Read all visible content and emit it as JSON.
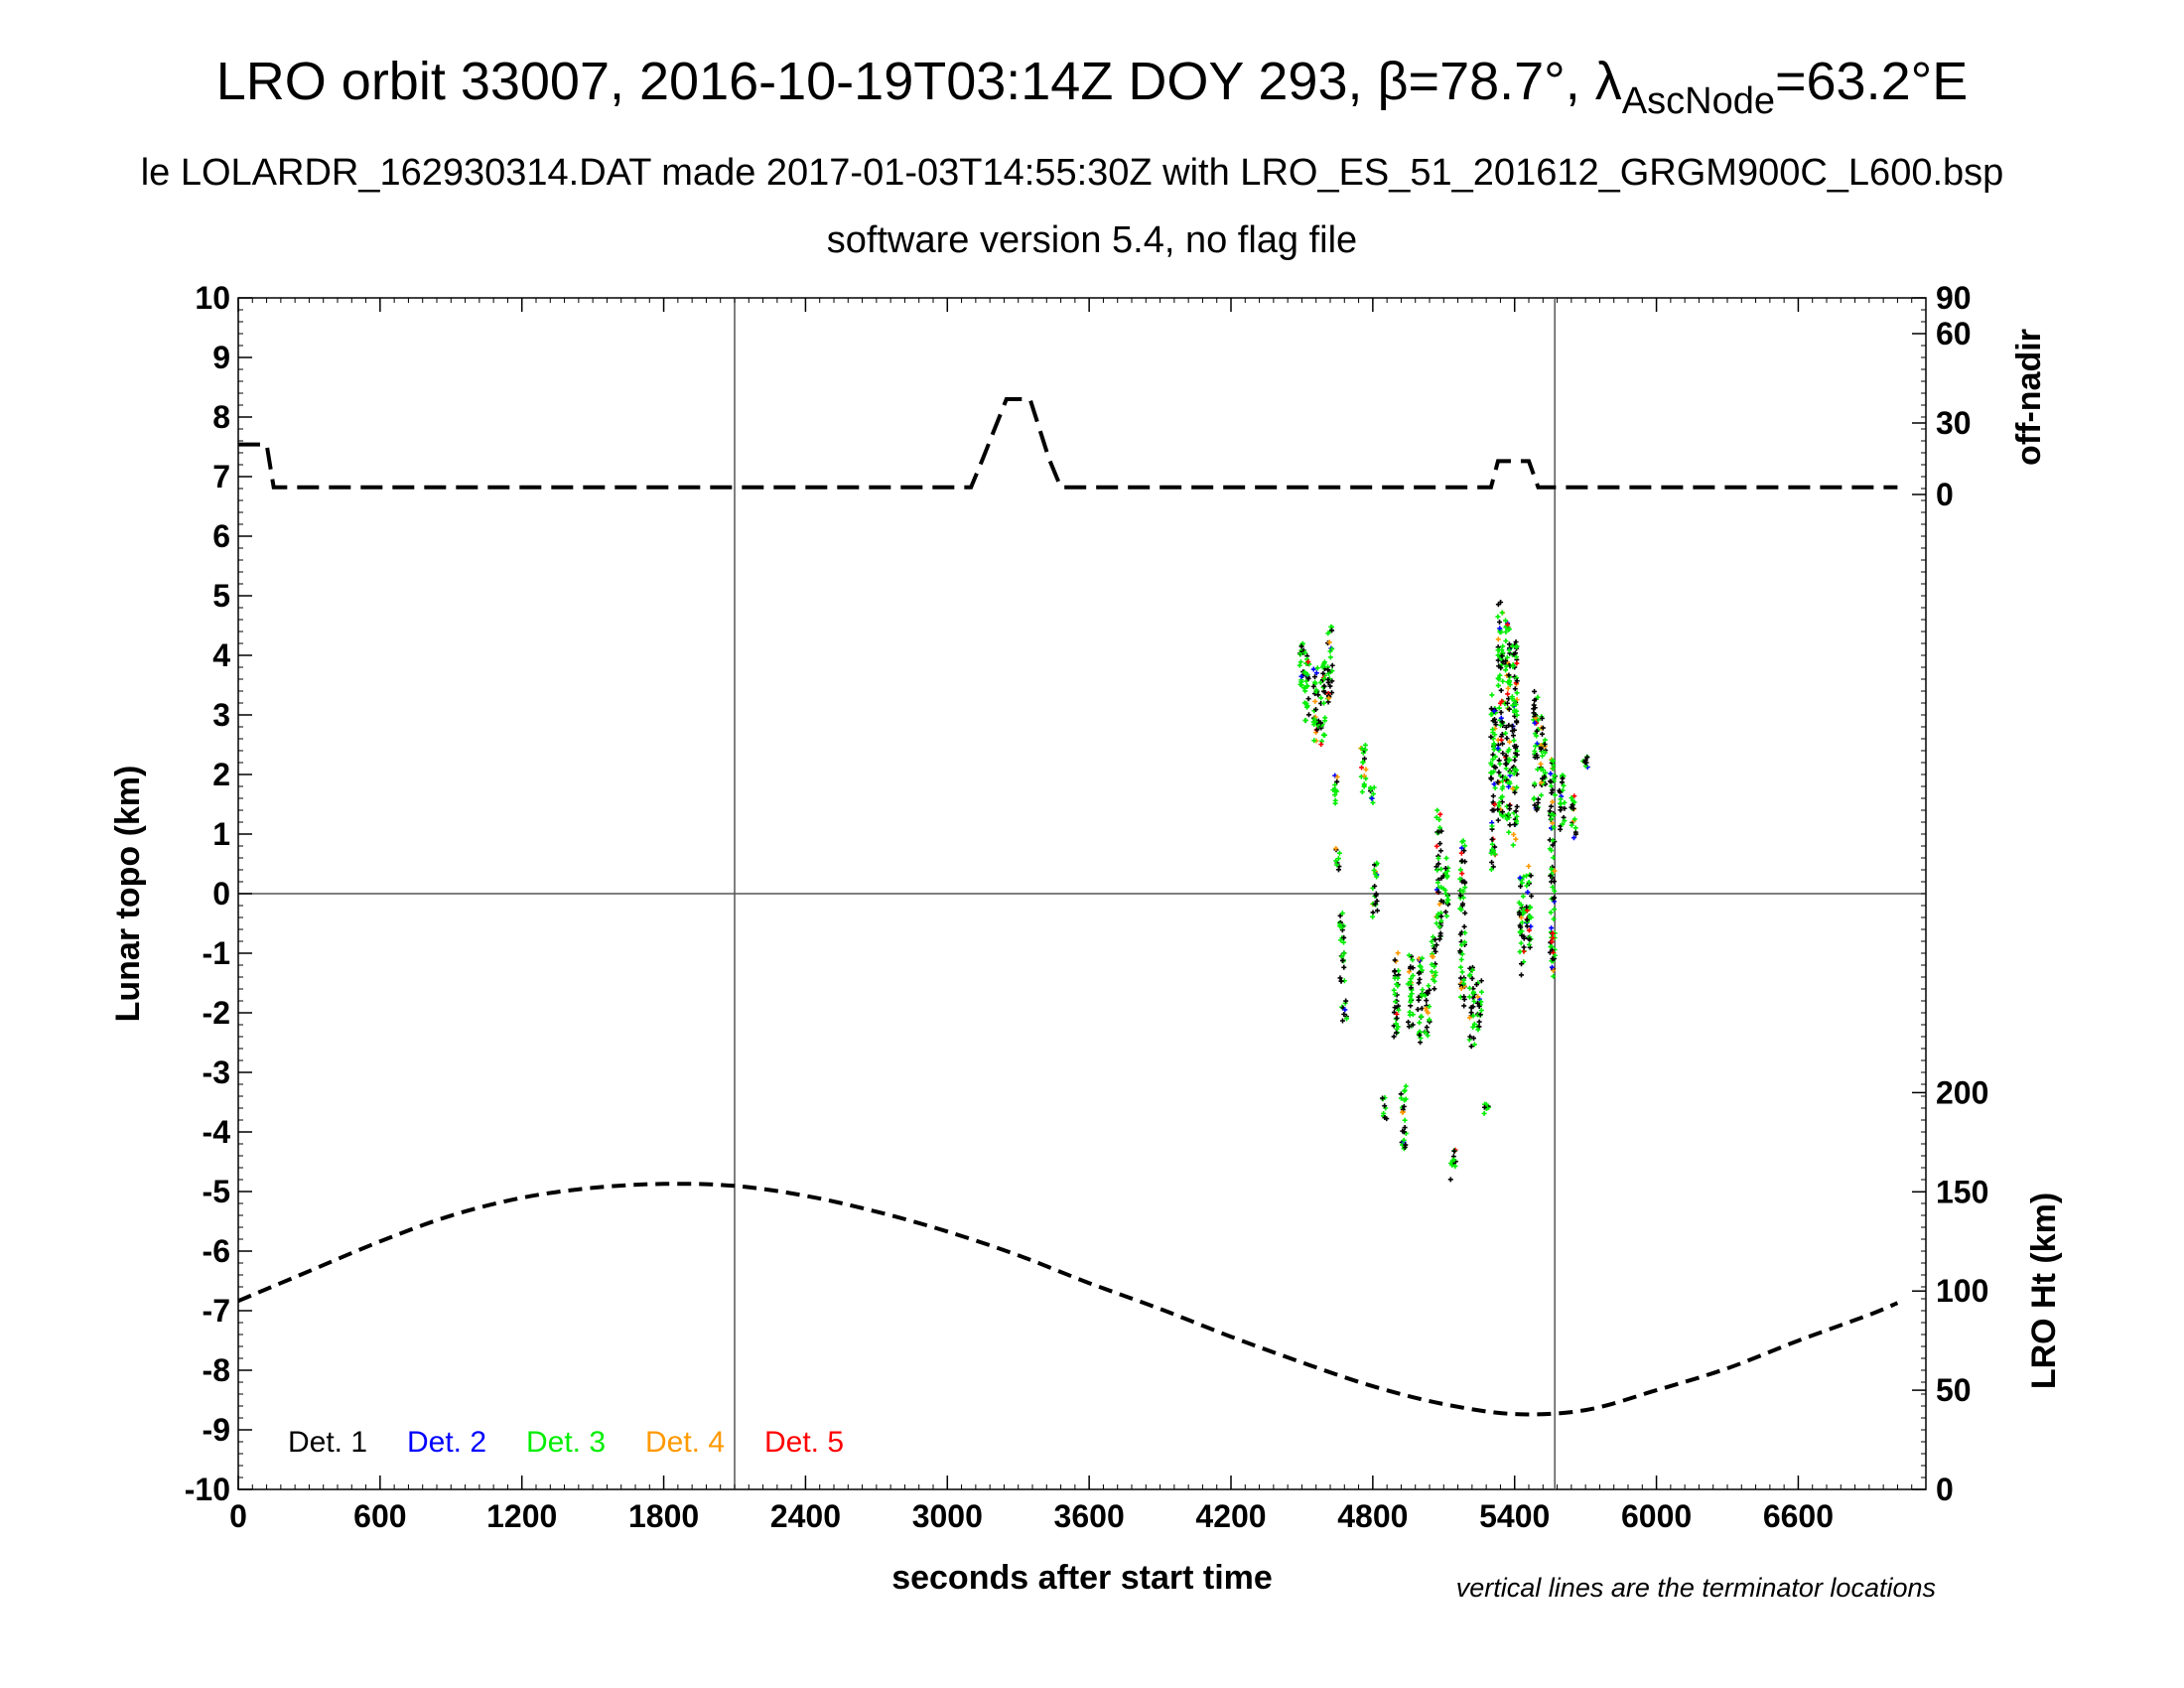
{
  "chart_data": {
    "type": "scatter",
    "title": "LRO orbit 33007, 2016-10-19T03:14Z DOY 293, β=78.7°, λ",
    "title_sub": "AscNode",
    "title_tail": "=63.2°E",
    "subtitle1": "le LOLARDR_162930314.DAT made 2017-01-03T14:55:30Z with LRO_ES_51_201612_GRGM900C_L600.bsp",
    "subtitle2": "software version 5.4, no flag file",
    "xlabel": "seconds after start time",
    "ylabel": "Lunar topo (km)",
    "y2label_top": "off-nadir",
    "y2label_bottom": "LRO Ht (km)",
    "note": "vertical lines are the terminator locations",
    "xlim": [
      0,
      7140
    ],
    "ylim": [
      -10,
      10
    ],
    "x_ticks": [
      "0",
      "600",
      "1200",
      "1800",
      "2400",
      "3000",
      "3600",
      "4200",
      "4800",
      "5400",
      "6000",
      "6600"
    ],
    "x_tick_values": [
      0,
      600,
      1200,
      1800,
      2400,
      3000,
      3600,
      4200,
      4800,
      5400,
      6000,
      6600
    ],
    "y_ticks": [
      "-10",
      "-9",
      "-8",
      "-7",
      "-6",
      "-5",
      "-4",
      "-3",
      "-2",
      "-1",
      "0",
      "1",
      "2",
      "3",
      "4",
      "5",
      "6",
      "7",
      "8",
      "9",
      "10"
    ],
    "y_tick_values": [
      -10,
      -9,
      -8,
      -7,
      -6,
      -5,
      -4,
      -3,
      -2,
      -1,
      0,
      1,
      2,
      3,
      4,
      5,
      6,
      7,
      8,
      9,
      10
    ],
    "offnadir_axis": {
      "tick_labels": [
        "0",
        "30",
        "60",
        "90"
      ],
      "tick_values": [
        0,
        30,
        60,
        90
      ],
      "topo_equivalent": [
        6.7,
        7.9,
        9.4,
        10
      ]
    },
    "height_axis": {
      "tick_labels": [
        "0",
        "50",
        "100",
        "150",
        "200"
      ],
      "tick_values": [
        0,
        50,
        100,
        150,
        200
      ],
      "topo_per_km": 0.0333,
      "topo_at_zero": -10
    },
    "terminators": [
      2100,
      5570
    ],
    "zero_line": 0,
    "legend": [
      {
        "name": "Det. 1",
        "color": "#000000"
      },
      {
        "name": "Det. 2",
        "color": "#0000ff"
      },
      {
        "name": "Det. 3",
        "color": "#00ee00"
      },
      {
        "name": "Det. 4",
        "color": "#ff9900"
      },
      {
        "name": "Det. 5",
        "color": "#ff0000"
      }
    ],
    "offnadir_series": {
      "x": [
        0,
        120,
        150,
        200,
        3100,
        3150,
        3250,
        3350,
        3430,
        3480,
        5300,
        5330,
        5460,
        5500,
        7020
      ],
      "off_nadir_deg": [
        21,
        21,
        3,
        3,
        3,
        15,
        38,
        38,
        15,
        3,
        3,
        14,
        14,
        3,
        3
      ]
    },
    "height_series": {
      "x": [
        0,
        300,
        600,
        900,
        1200,
        1500,
        1800,
        2100,
        2400,
        2700,
        3000,
        3300,
        3600,
        3900,
        4200,
        4500,
        4800,
        5100,
        5400,
        5700,
        6000,
        6300,
        6600,
        6900,
        7020
      ],
      "height_km": [
        95,
        110,
        125,
        138,
        147,
        152,
        154,
        153,
        148,
        140,
        130,
        118,
        104,
        91,
        77,
        64,
        52,
        43,
        38,
        40,
        50,
        61,
        75,
        88,
        94
      ]
    },
    "topo_clusters": [
      {
        "x": 4500,
        "y_min": 3.3,
        "y_max": 4.2
      },
      {
        "x": 4520,
        "y_min": 2.9,
        "y_max": 4.1
      },
      {
        "x": 4560,
        "y_min": 2.4,
        "y_max": 3.8
      },
      {
        "x": 4590,
        "y_min": 2.5,
        "y_max": 3.9
      },
      {
        "x": 4620,
        "y_min": 3.2,
        "y_max": 4.5
      },
      {
        "x": 4640,
        "y_min": 1.5,
        "y_max": 2.0
      },
      {
        "x": 4650,
        "y_min": 0.4,
        "y_max": 0.8
      },
      {
        "x": 4670,
        "y_min": -1.5,
        "y_max": -0.3
      },
      {
        "x": 4680,
        "y_min": -2.2,
        "y_max": -1.8
      },
      {
        "x": 4760,
        "y_min": 1.7,
        "y_max": 2.5
      },
      {
        "x": 4800,
        "y_min": 1.5,
        "y_max": 1.8
      },
      {
        "x": 4810,
        "y_min": -0.4,
        "y_max": 0.6
      },
      {
        "x": 4850,
        "y_min": -3.8,
        "y_max": -3.4
      },
      {
        "x": 4900,
        "y_min": -2.4,
        "y_max": -0.9
      },
      {
        "x": 4930,
        "y_min": -4.3,
        "y_max": -3.2
      },
      {
        "x": 4960,
        "y_min": -2.3,
        "y_max": -1.0
      },
      {
        "x": 5000,
        "y_min": -2.5,
        "y_max": -1.0
      },
      {
        "x": 5030,
        "y_min": -2.4,
        "y_max": -1.5
      },
      {
        "x": 5060,
        "y_min": -1.6,
        "y_max": -0.7
      },
      {
        "x": 5080,
        "y_min": -0.8,
        "y_max": 1.4
      },
      {
        "x": 5110,
        "y_min": -0.4,
        "y_max": 0.6
      },
      {
        "x": 5140,
        "y_min": -4.8,
        "y_max": -4.2
      },
      {
        "x": 5180,
        "y_min": -1.9,
        "y_max": 0.9
      },
      {
        "x": 5220,
        "y_min": -2.6,
        "y_max": -1.2
      },
      {
        "x": 5250,
        "y_min": -2.3,
        "y_max": -1.4
      },
      {
        "x": 5280,
        "y_min": -3.7,
        "y_max": -3.5
      },
      {
        "x": 5310,
        "y_min": 0.4,
        "y_max": 3.4
      },
      {
        "x": 5340,
        "y_min": 1.2,
        "y_max": 4.9
      },
      {
        "x": 5370,
        "y_min": 1.0,
        "y_max": 4.6
      },
      {
        "x": 5400,
        "y_min": 0.8,
        "y_max": 4.3
      },
      {
        "x": 5430,
        "y_min": -1.4,
        "y_max": 0.3
      },
      {
        "x": 5460,
        "y_min": -1.0,
        "y_max": 0.5
      },
      {
        "x": 5490,
        "y_min": 1.4,
        "y_max": 3.4
      },
      {
        "x": 5520,
        "y_min": 1.6,
        "y_max": 3.1
      },
      {
        "x": 5560,
        "y_min": -1.4,
        "y_max": 2.4
      },
      {
        "x": 5600,
        "y_min": 1.0,
        "y_max": 2.0
      },
      {
        "x": 5650,
        "y_min": 0.9,
        "y_max": 1.7
      },
      {
        "x": 5700,
        "y_min": 2.1,
        "y_max": 2.3
      }
    ]
  }
}
